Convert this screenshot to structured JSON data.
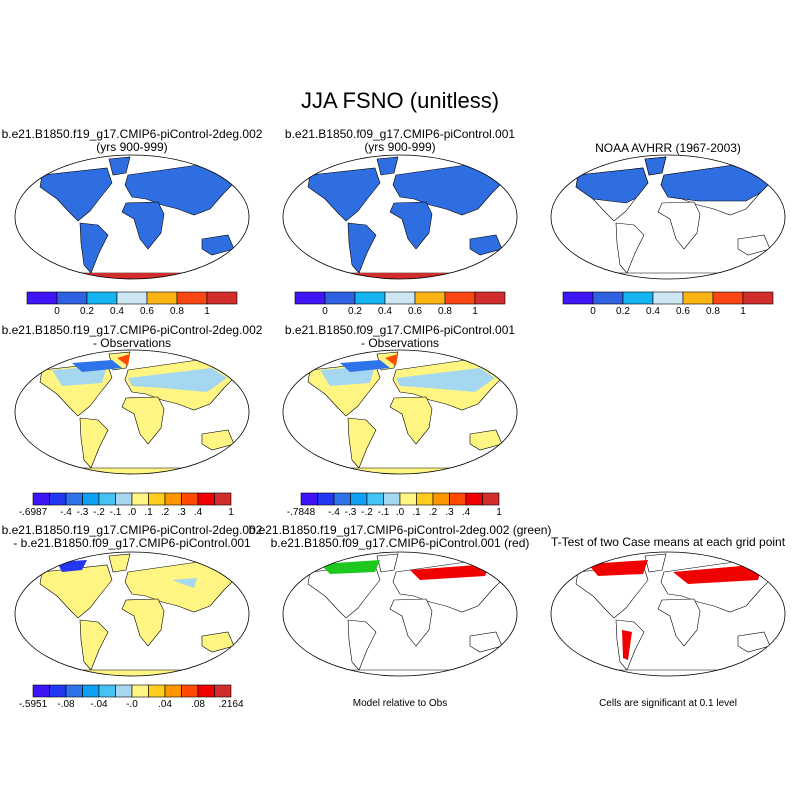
{
  "title": "JJA FSNO (unitless)",
  "panels": [
    {
      "line1": "b.e21.B1850.f19_g17.CMIP6-piControl-2deg.002",
      "line2": "(yrs 900-999)",
      "colorbar": "abs"
    },
    {
      "line1": "b.e21.B1850.f09_g17.CMIP6-piControl.001",
      "line2": "(yrs 900-999)",
      "colorbar": "abs"
    },
    {
      "line1": "NOAA AVHRR (1967-2003)",
      "line2": "",
      "colorbar": "abs"
    },
    {
      "line1": "b.e21.B1850.f19_g17.CMIP6-piControl-2deg.002",
      "line2": "- Observations",
      "colorbar": "diff1"
    },
    {
      "line1": "b.e21.B1850.f09_g17.CMIP6-piControl.001",
      "line2": "- Observations",
      "colorbar": "diff2"
    },
    {
      "line1": "b.e21.B1850.f19_g17.CMIP6-piControl-2deg.002",
      "line2": "- b.e21.B1850.f09_g17.CMIP6-piControl.001",
      "colorbar": "diff3"
    },
    {
      "line1": "b.e21.B1850.f19_g17.CMIP6-piControl-2deg.002 (green)",
      "line2": "b.e21.B1850.f09_g17.CMIP6-piControl.001 (red)",
      "note": "Model relative to Obs"
    },
    {
      "line1": "T-Test of two Case means at each grid point",
      "line2": "",
      "note": "Cells are significant at 0.1 level"
    }
  ],
  "colorbars": {
    "abs": {
      "colors": [
        "#3f14f5",
        "#2f62e0",
        "#14b4f0",
        "#cde6f4",
        "#fbb414",
        "#fa4614",
        "#d22d2d"
      ],
      "labels": [
        "0",
        "0.2",
        "0.4",
        "0.6",
        "0.8",
        "1"
      ]
    },
    "diff1": {
      "labels": [
        "-.6987",
        "-.4",
        "-.3",
        "-.2",
        "-.1",
        ".0",
        ".1",
        ".2",
        ".3",
        ".4",
        "1"
      ]
    },
    "diff2": {
      "labels": [
        "-.7848",
        "-.4",
        "-.3",
        "-.2",
        "-.1",
        ".0",
        ".1",
        ".2",
        ".3",
        ".4",
        "1"
      ]
    },
    "diff3": {
      "labels": [
        "-.5951",
        "-.08",
        "-.04",
        "-.0",
        ".04",
        ".08",
        ".2164"
      ]
    },
    "diff_colors": [
      "#3f14f5",
      "#2337f0",
      "#2f73eb",
      "#0fa0f5",
      "#46c3f5",
      "#a5d7f0",
      "#fff582",
      "#ffcd1e",
      "#ff9600",
      "#ff4b00",
      "#f00000",
      "#d22d2d"
    ]
  }
}
